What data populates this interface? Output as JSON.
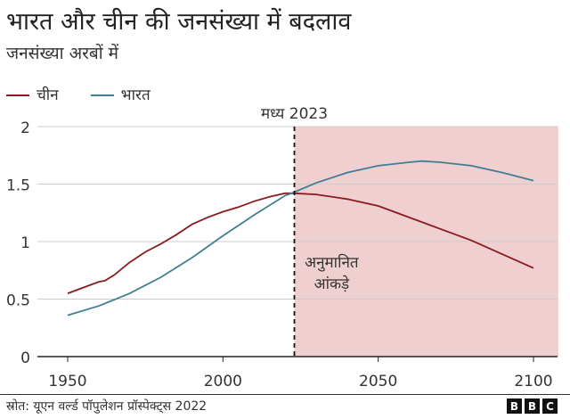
{
  "chart_data": {
    "type": "line",
    "title": "भारत और चीन की जनसंख्या में बदलाव",
    "subtitle": "जनसंख्या अरबों में",
    "xlim": [
      1940,
      2108
    ],
    "ylim": [
      0,
      2
    ],
    "x_ticks": [
      1950,
      2000,
      2050,
      2100
    ],
    "y_ticks": [
      0,
      0.5,
      1,
      1.5,
      2
    ],
    "y_tick_labels": [
      "0",
      "0.5",
      "1",
      "1.5",
      "2"
    ],
    "grid": "horizontal",
    "legend": "top-left",
    "annotations": {
      "marker_label": "मध्य 2023",
      "marker_x": 2023,
      "projection_label_line1": "अनुमानित",
      "projection_label_line2": "आंकड़े",
      "projection_color": "#f0cfd1"
    },
    "series": [
      {
        "name": "चीन",
        "color": "#8b1a1f",
        "x": [
          1950,
          1955,
          1960,
          1962,
          1965,
          1970,
          1975,
          1980,
          1985,
          1990,
          1995,
          2000,
          2005,
          2010,
          2015,
          2020,
          2023,
          2030,
          2040,
          2050,
          2060,
          2070,
          2080,
          2090,
          2100
        ],
        "y": [
          0.55,
          0.6,
          0.65,
          0.66,
          0.71,
          0.82,
          0.91,
          0.98,
          1.06,
          1.15,
          1.21,
          1.26,
          1.3,
          1.35,
          1.39,
          1.42,
          1.42,
          1.41,
          1.37,
          1.31,
          1.21,
          1.11,
          1.01,
          0.89,
          0.77
        ]
      },
      {
        "name": "भारत",
        "color": "#3f7f93",
        "x": [
          1950,
          1960,
          1970,
          1980,
          1990,
          2000,
          2010,
          2020,
          2023,
          2030,
          2040,
          2050,
          2060,
          2064,
          2070,
          2080,
          2090,
          2100
        ],
        "y": [
          0.36,
          0.44,
          0.55,
          0.69,
          0.86,
          1.05,
          1.23,
          1.4,
          1.43,
          1.51,
          1.6,
          1.66,
          1.69,
          1.7,
          1.69,
          1.66,
          1.6,
          1.53
        ]
      }
    ]
  },
  "footer": {
    "source": "स्रोत: यूएन वर्ल्ड पॉपुलेशन प्रॉस्पेक्ट्स 2022",
    "logo": "BBC"
  }
}
